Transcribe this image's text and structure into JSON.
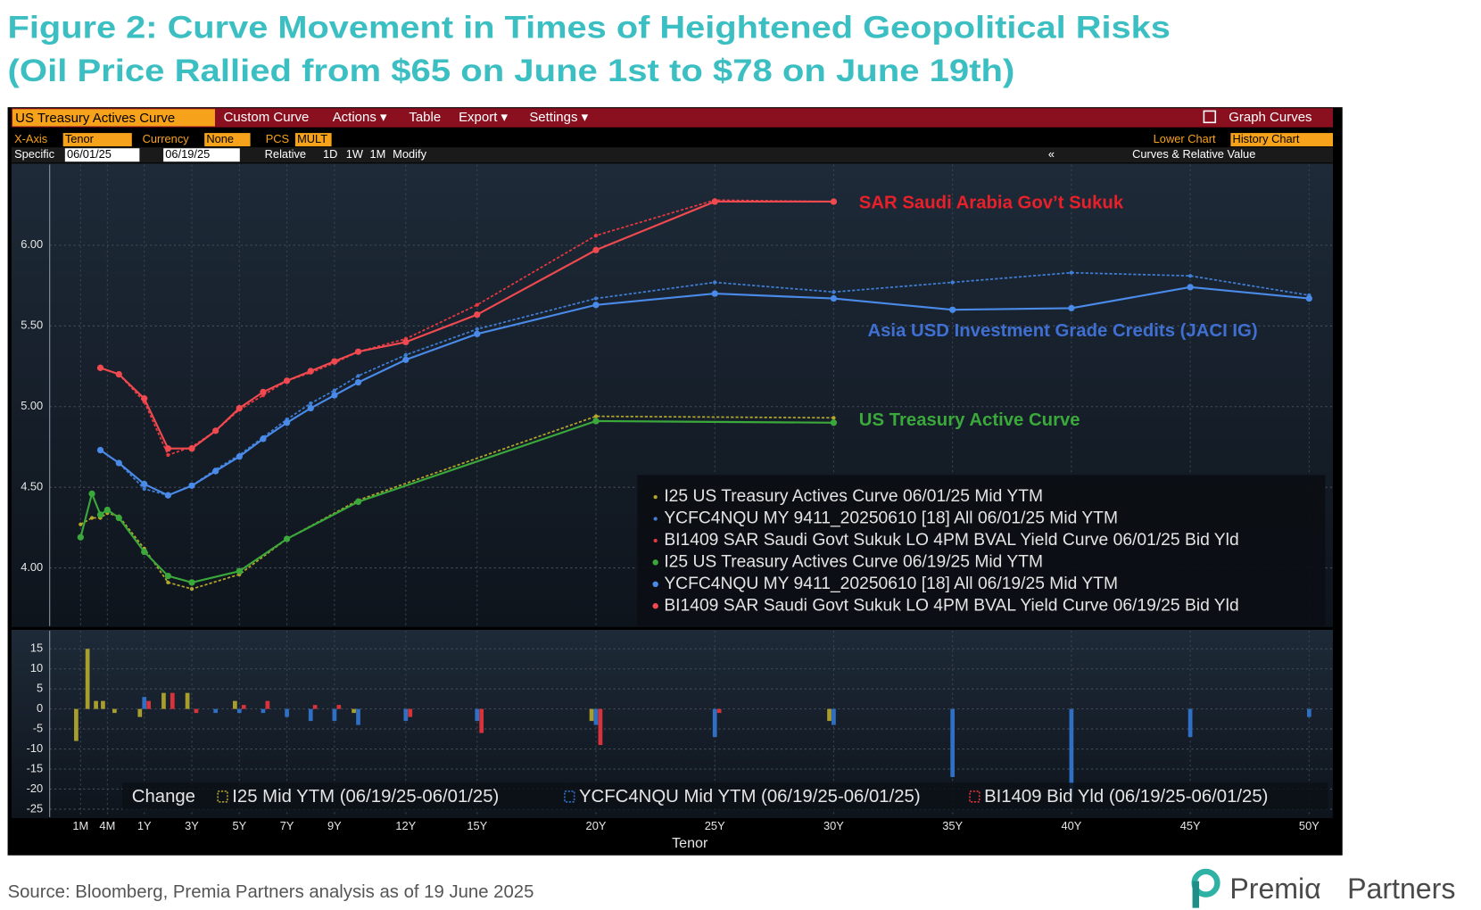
{
  "title": "Figure 2: Curve Movement in Times of Heightened Geopolitical Risks",
  "subtitle": "(Oil Price Rallied from $65 on June 1st to $78 on June 19th)",
  "toolbar": {
    "tab": "US Treasury Actives Curve",
    "menus": [
      "Custom Curve",
      "Actions ▾",
      "Table",
      "Export ▾",
      "Settings ▾"
    ],
    "graph": "Graph Curves",
    "x_axis_label": "X-Axis",
    "x_axis": "Tenor",
    "currency_label": "Currency",
    "currency": "None",
    "pcs_label": "PCS",
    "pcs": "MULT",
    "lower_chart_label": "Lower Chart",
    "lower_chart": "History Chart",
    "specific_label": "Specific",
    "date_from": "06/01/25",
    "date_to": "06/19/25",
    "relative_label": "Relative",
    "relative": [
      "1D",
      "1W",
      "1M"
    ],
    "modify": "Modify",
    "collapse": "«",
    "panel": "Curves & Relative Value"
  },
  "chart_data": [
    {
      "type": "line",
      "xlim": [
        0,
        51
      ],
      "ylim": [
        3.64,
        6.5
      ],
      "yticks": [
        {
          "value": 6,
          "label": "6.00"
        },
        {
          "value": 5.5,
          "label": "5.50"
        },
        {
          "value": 5,
          "label": "5.00"
        },
        {
          "value": 4.5,
          "label": "4.50"
        },
        {
          "value": 4,
          "label": "4.00"
        }
      ],
      "xticks": [
        {
          "value": 0.0833,
          "label": "1M"
        },
        {
          "value": 0.3333,
          "label": "4M"
        },
        {
          "value": 1,
          "label": "1Y"
        },
        {
          "value": 3,
          "label": "3Y"
        },
        {
          "value": 5,
          "label": "5Y"
        },
        {
          "value": 7,
          "label": "7Y"
        },
        {
          "value": 9,
          "label": "9Y"
        },
        {
          "value": 12,
          "label": "12Y"
        },
        {
          "value": 15,
          "label": "15Y"
        },
        {
          "value": 20,
          "label": "20Y"
        },
        {
          "value": 25,
          "label": "25Y"
        },
        {
          "value": 30,
          "label": "30Y"
        },
        {
          "value": 35,
          "label": "35Y"
        },
        {
          "value": 40,
          "label": "40Y"
        },
        {
          "value": 45,
          "label": "45Y"
        },
        {
          "value": 50,
          "label": "50Y"
        }
      ],
      "grid": true,
      "series": [
        {
          "name": "I25 US Treasury Actives Curve 06/01/25 Mid YTM",
          "color": "#b3a72c",
          "dashed": true,
          "x": [
            0.0833,
            0.1667,
            0.25,
            0.3333,
            0.5,
            1,
            2,
            3,
            5,
            7,
            10,
            20,
            30
          ],
          "values": [
            4.27,
            4.31,
            4.31,
            4.34,
            4.32,
            4.12,
            3.91,
            3.87,
            3.96,
            4.18,
            4.42,
            4.94,
            4.93
          ]
        },
        {
          "name": "YCFC4NQU MY 9411_20250610 [18] All 06/01/25 Mid YTM",
          "color": "#3f7fd6",
          "dashed": true,
          "x": [
            0.25,
            0.5,
            1,
            2,
            3,
            4,
            5,
            6,
            7,
            8,
            9,
            10,
            12,
            15,
            20,
            25,
            30,
            35,
            40,
            45,
            50
          ],
          "values": [
            4.73,
            4.65,
            4.49,
            4.45,
            4.51,
            4.61,
            4.7,
            4.81,
            4.92,
            5.02,
            5.1,
            5.19,
            5.32,
            5.48,
            5.67,
            5.77,
            5.71,
            5.77,
            5.83,
            5.81,
            5.69
          ]
        },
        {
          "name": "BI1409 SAR Saudi Govt Sukuk LO 4PM BVAL Yield Curve 06/01/25 Bid Yld",
          "color": "#e8393f",
          "dashed": true,
          "x": [
            0.25,
            0.5,
            1,
            2,
            3,
            4,
            5,
            6,
            7,
            8,
            9,
            10,
            12,
            15,
            20,
            25,
            30
          ],
          "values": [
            5.24,
            5.2,
            5.03,
            4.7,
            4.75,
            4.85,
            4.98,
            5.07,
            5.16,
            5.21,
            5.27,
            5.34,
            5.42,
            5.63,
            6.06,
            6.28,
            6.27
          ]
        },
        {
          "name": "I25 US Treasury Actives Curve 06/19/25 Mid YTM",
          "color": "#3aa83a",
          "dashed": false,
          "x": [
            0.0833,
            0.1667,
            0.25,
            0.3333,
            0.5,
            1,
            2,
            3,
            5,
            7,
            10,
            20,
            30
          ],
          "values": [
            4.19,
            4.46,
            4.33,
            4.36,
            4.31,
            4.1,
            3.95,
            3.91,
            3.98,
            4.18,
            4.41,
            4.91,
            4.9
          ]
        },
        {
          "name": "YCFC4NQU MY 9411_20250610 [18] All 06/19/25 Mid YTM",
          "color": "#4a8ae8",
          "dashed": false,
          "x": [
            0.25,
            0.5,
            1,
            2,
            3,
            4,
            5,
            6,
            7,
            8,
            9,
            10,
            12,
            15,
            20,
            25,
            30,
            35,
            40,
            45,
            50
          ],
          "values": [
            4.73,
            4.65,
            4.52,
            4.45,
            4.51,
            4.6,
            4.69,
            4.8,
            4.9,
            4.99,
            5.07,
            5.15,
            5.29,
            5.45,
            5.63,
            5.7,
            5.67,
            5.6,
            5.61,
            5.74,
            5.67
          ]
        },
        {
          "name": "BI1409 SAR Saudi Govt Sukuk LO 4PM BVAL Yield Curve 06/19/25 Bid Yld",
          "color": "#f04a50",
          "dashed": false,
          "x": [
            0.25,
            0.5,
            1,
            2,
            3,
            4,
            5,
            6,
            7,
            8,
            9,
            10,
            12,
            15,
            20,
            25,
            30
          ],
          "values": [
            5.24,
            5.2,
            5.05,
            4.74,
            4.74,
            4.85,
            4.99,
            5.09,
            5.16,
            5.22,
            5.28,
            5.34,
            5.4,
            5.57,
            5.97,
            6.27,
            6.27
          ]
        }
      ],
      "annotations": [
        {
          "text": "SAR Saudi Arabia Gov’t Sukuk",
          "color": "#e8202a"
        },
        {
          "text": "Asia USD Investment Grade Credits (JACI IG)",
          "color": "#3f6fd0"
        },
        {
          "text": "US Treasury Active Curve",
          "color": "#3aa83a"
        }
      ]
    },
    {
      "type": "bar",
      "xlabel": "Tenor",
      "xlim": [
        0,
        51
      ],
      "ylim": [
        -27,
        19.5
      ],
      "yticks": [
        15,
        10,
        5,
        0,
        -5,
        -10,
        -15,
        -20,
        -25
      ],
      "xticks": [
        {
          "value": 0.0833,
          "label": "1M"
        },
        {
          "value": 0.3333,
          "label": "4M"
        },
        {
          "value": 1,
          "label": "1Y"
        },
        {
          "value": 3,
          "label": "3Y"
        },
        {
          "value": 5,
          "label": "5Y"
        },
        {
          "value": 7,
          "label": "7Y"
        },
        {
          "value": 9,
          "label": "9Y"
        },
        {
          "value": 12,
          "label": "12Y"
        },
        {
          "value": 15,
          "label": "15Y"
        },
        {
          "value": 20,
          "label": "20Y"
        },
        {
          "value": 25,
          "label": "25Y"
        },
        {
          "value": 30,
          "label": "30Y"
        },
        {
          "value": 35,
          "label": "35Y"
        },
        {
          "value": 40,
          "label": "40Y"
        },
        {
          "value": 45,
          "label": "45Y"
        },
        {
          "value": 50,
          "label": "50Y"
        }
      ],
      "grid": true,
      "legend_title": "Change",
      "series": [
        {
          "name": "I25 Mid YTM (06/19/25-06/01/25)",
          "color": "#a89e2e",
          "x": [
            0.0833,
            0.1667,
            0.25,
            0.3333,
            0.5,
            1,
            2,
            3,
            5,
            7,
            10,
            20,
            30
          ],
          "values": [
            -8,
            15,
            2,
            2,
            -1,
            -2,
            4,
            4,
            2,
            0,
            -1,
            -3,
            -3
          ]
        },
        {
          "name": "YCFC4NQU Mid YTM (06/19/25-06/01/25)",
          "color": "#2f6fc4",
          "x": [
            0.25,
            0.5,
            1,
            2,
            3,
            4,
            5,
            6,
            7,
            8,
            9,
            10,
            12,
            15,
            20,
            25,
            30,
            35,
            40,
            45,
            50
          ],
          "values": [
            0,
            0,
            3,
            0,
            0,
            -1,
            -1,
            -1,
            -2,
            -3,
            -3,
            -4,
            -3,
            -3,
            -4,
            -7,
            -4,
            -17,
            -22,
            -7,
            -2
          ]
        },
        {
          "name": "BI1409 Bid Yld (06/19/25-06/01/25)",
          "color": "#d8333b",
          "x": [
            0.25,
            0.5,
            1,
            2,
            3,
            4,
            5,
            6,
            7,
            8,
            9,
            10,
            12,
            15,
            20,
            25,
            30
          ],
          "values": [
            0,
            0,
            2,
            4,
            -1,
            0,
            1,
            2,
            0,
            1,
            1,
            0,
            -2,
            -6,
            -9,
            -1,
            0
          ]
        }
      ]
    }
  ],
  "source": "Source: Bloomberg, Premia Partners analysis as of 19 June 2025",
  "logo": {
    "brand": "Premiα",
    "suffix": "Partners"
  }
}
